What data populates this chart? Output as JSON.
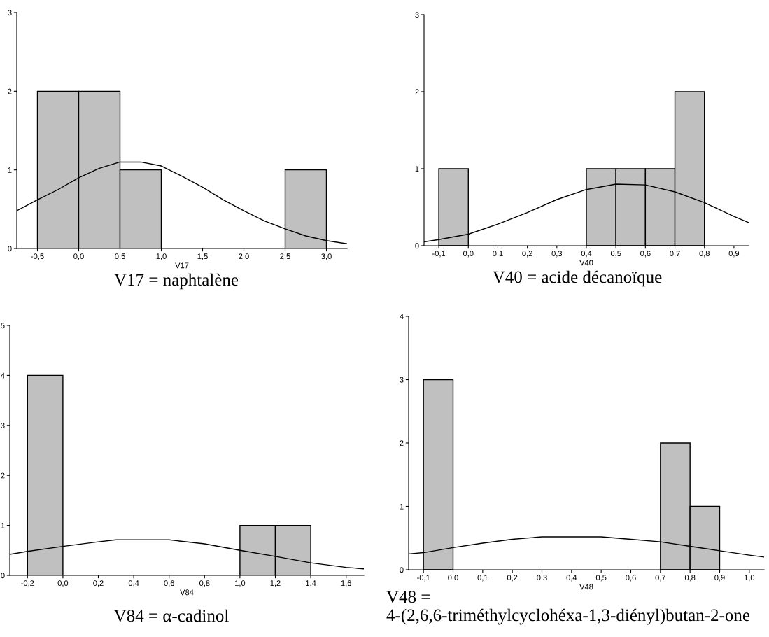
{
  "chart_data": [
    {
      "type": "histogram",
      "title": "V17 = naphtalène",
      "xlabel": "V17",
      "bins": [
        -0.5,
        0.0,
        0.5,
        1.0,
        1.5,
        2.0,
        2.5,
        3.0
      ],
      "values": [
        2,
        2,
        1,
        0,
        0,
        0,
        1
      ],
      "color": "#c0c0c0",
      "series": [
        {
          "type": "line",
          "color": "#000000",
          "x": [
            -0.75,
            -0.5,
            -0.25,
            0.0,
            0.25,
            0.5,
            0.75,
            1.0,
            1.25,
            1.5,
            1.75,
            2.0,
            2.25,
            2.5,
            2.75,
            3.0,
            3.25
          ],
          "values": [
            0.48,
            0.62,
            0.75,
            0.9,
            1.02,
            1.1,
            1.1,
            1.05,
            0.92,
            0.78,
            0.62,
            0.48,
            0.35,
            0.25,
            0.16,
            0.1,
            0.06
          ]
        }
      ],
      "xlim": [
        -0.75,
        3.25
      ],
      "xticks": [
        {
          "value": -0.5,
          "label": "-0,5"
        },
        {
          "value": 0.0,
          "label": "0,0"
        },
        {
          "value": 0.5,
          "label": "0,5"
        },
        {
          "value": 1.0,
          "label": "1,0"
        },
        {
          "value": 1.5,
          "label": "1,5"
        },
        {
          "value": 2.0,
          "label": "2,0"
        },
        {
          "value": 2.5,
          "label": "2,5"
        },
        {
          "value": 3.0,
          "label": "3,0"
        }
      ],
      "ylim": [
        0,
        3
      ],
      "yticks": [
        0,
        1,
        2,
        3
      ]
    },
    {
      "type": "histogram",
      "title": "V40 = acide décanoïque",
      "xlabel": "V40",
      "bins": [
        -0.1,
        0.0,
        0.1,
        0.2,
        0.3,
        0.4,
        0.5,
        0.6,
        0.7,
        0.8
      ],
      "values": [
        1,
        0,
        0,
        0,
        0,
        1,
        1,
        1,
        2
      ],
      "color": "#c0c0c0",
      "series": [
        {
          "type": "line",
          "color": "#000000",
          "x": [
            -0.15,
            -0.1,
            0.0,
            0.1,
            0.2,
            0.3,
            0.4,
            0.5,
            0.6,
            0.7,
            0.8,
            0.9,
            0.95
          ],
          "values": [
            0.05,
            0.08,
            0.15,
            0.28,
            0.43,
            0.6,
            0.73,
            0.8,
            0.79,
            0.7,
            0.56,
            0.38,
            0.3
          ]
        }
      ],
      "xlim": [
        -0.15,
        0.95
      ],
      "xticks": [
        {
          "value": -0.1,
          "label": "-0,1"
        },
        {
          "value": 0.0,
          "label": "0,0"
        },
        {
          "value": 0.1,
          "label": "0,1"
        },
        {
          "value": 0.2,
          "label": "0,2"
        },
        {
          "value": 0.3,
          "label": "0,3"
        },
        {
          "value": 0.4,
          "label": "0,4"
        },
        {
          "value": 0.5,
          "label": "0,5"
        },
        {
          "value": 0.6,
          "label": "0,6"
        },
        {
          "value": 0.7,
          "label": "0,7"
        },
        {
          "value": 0.8,
          "label": "0,8"
        },
        {
          "value": 0.9,
          "label": "0,9"
        }
      ],
      "ylim": [
        0,
        3
      ],
      "yticks": [
        0,
        1,
        2,
        3
      ]
    },
    {
      "type": "histogram",
      "title": "V84 = α-cadinol",
      "xlabel": "V84",
      "bins": [
        -0.2,
        0.0,
        0.2,
        0.4,
        0.6,
        0.8,
        1.0,
        1.2,
        1.4
      ],
      "values": [
        4,
        0,
        0,
        0,
        0,
        0,
        1,
        1
      ],
      "color": "#c0c0c0",
      "series": [
        {
          "type": "line",
          "color": "#000000",
          "x": [
            -0.3,
            -0.2,
            0.0,
            0.2,
            0.3,
            0.6,
            0.8,
            1.0,
            1.2,
            1.4,
            1.6,
            1.7
          ],
          "values": [
            0.42,
            0.48,
            0.58,
            0.67,
            0.71,
            0.71,
            0.63,
            0.5,
            0.38,
            0.25,
            0.16,
            0.13
          ]
        }
      ],
      "xlim": [
        -0.3,
        1.7
      ],
      "xticks": [
        {
          "value": -0.2,
          "label": "-0,2"
        },
        {
          "value": 0.0,
          "label": "0,0"
        },
        {
          "value": 0.2,
          "label": "0,2"
        },
        {
          "value": 0.4,
          "label": "0,4"
        },
        {
          "value": 0.6,
          "label": "0,6"
        },
        {
          "value": 0.8,
          "label": "0,8"
        },
        {
          "value": 1.0,
          "label": "1,0"
        },
        {
          "value": 1.2,
          "label": "1,2"
        },
        {
          "value": 1.4,
          "label": "1,4"
        },
        {
          "value": 1.6,
          "label": "1,6"
        }
      ],
      "ylim": [
        0,
        5
      ],
      "yticks": [
        0,
        1,
        2,
        3,
        4,
        5
      ]
    },
    {
      "type": "histogram",
      "title": "V48 = 4-(2,6,6-triméthylcyclohéxa-1,3-diényl)butan-2-one",
      "xlabel": "V48",
      "bins": [
        -0.1,
        0.0,
        0.1,
        0.2,
        0.3,
        0.4,
        0.5,
        0.6,
        0.7,
        0.8,
        0.9
      ],
      "values": [
        3,
        0,
        0,
        0,
        0,
        0,
        0,
        0,
        2,
        1
      ],
      "color": "#c0c0c0",
      "series": [
        {
          "type": "line",
          "color": "#000000",
          "x": [
            -0.15,
            -0.1,
            0.0,
            0.1,
            0.2,
            0.3,
            0.5,
            0.6,
            0.7,
            0.8,
            0.9,
            1.0,
            1.05
          ],
          "values": [
            0.25,
            0.27,
            0.35,
            0.42,
            0.48,
            0.52,
            0.52,
            0.48,
            0.44,
            0.37,
            0.3,
            0.23,
            0.2
          ]
        }
      ],
      "xlim": [
        -0.15,
        1.05
      ],
      "xticks": [
        {
          "value": -0.1,
          "label": "-0,1"
        },
        {
          "value": 0.0,
          "label": "0,0"
        },
        {
          "value": 0.1,
          "label": "0,1"
        },
        {
          "value": 0.2,
          "label": "0,2"
        },
        {
          "value": 0.3,
          "label": "0,3"
        },
        {
          "value": 0.4,
          "label": "0,4"
        },
        {
          "value": 0.5,
          "label": "0,5"
        },
        {
          "value": 0.6,
          "label": "0,6"
        },
        {
          "value": 0.7,
          "label": "0,7"
        },
        {
          "value": 0.8,
          "label": "0,8"
        },
        {
          "value": 0.9,
          "label": "0,9"
        },
        {
          "value": 1.0,
          "label": "1,0"
        }
      ],
      "ylim": [
        0,
        4
      ],
      "yticks": [
        0,
        1,
        2,
        3,
        4
      ]
    }
  ]
}
